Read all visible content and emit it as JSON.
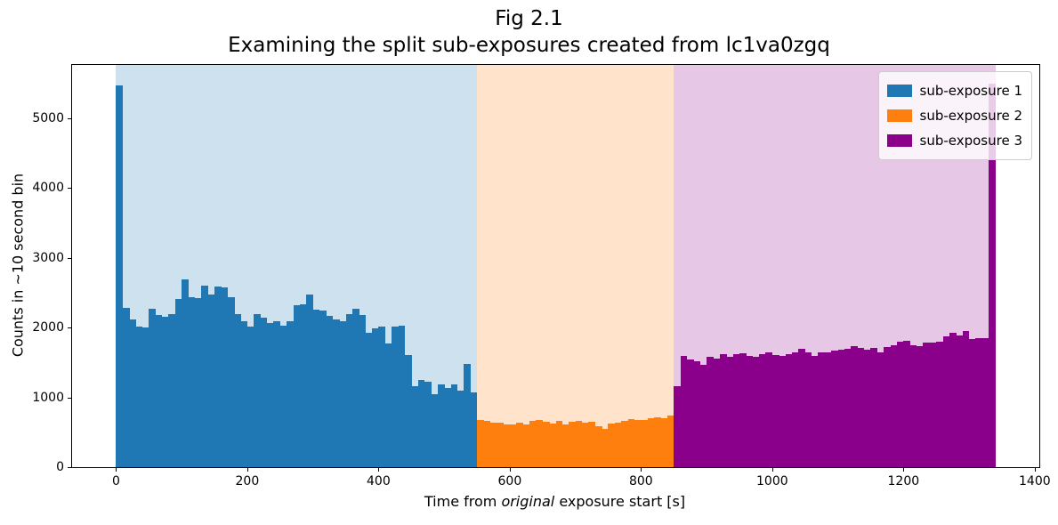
{
  "title": {
    "line1": "Fig 2.1",
    "line2": "Examining the split sub-exposures created from lc1va0zgq"
  },
  "axes": {
    "xlabel_prefix": "Time from ",
    "xlabel_italic": "original",
    "xlabel_suffix": " exposure start [s]",
    "ylabel": "Counts in ~10 second bin",
    "x_ticks": [
      0,
      200,
      400,
      600,
      800,
      1000,
      1200,
      1400
    ],
    "y_ticks": [
      0,
      1000,
      2000,
      3000,
      4000,
      5000
    ]
  },
  "legend": {
    "items": [
      {
        "label": "sub-exposure 1",
        "color": "#1f77b4"
      },
      {
        "label": "sub-exposure 2",
        "color": "#ff7f0e"
      },
      {
        "label": "sub-exposure 3",
        "color": "#8b008b"
      }
    ]
  },
  "chart_data": {
    "type": "bar",
    "subtype": "histogram",
    "title": "Fig 2.1 — Examining the split sub-exposures created from lc1va0zgq",
    "xlabel": "Time from original exposure start [s]",
    "ylabel": "Counts in ~10 second bin",
    "xlim": [
      -67,
      1407
    ],
    "ylim": [
      0,
      5765
    ],
    "bin_width_seconds": 10,
    "grid": false,
    "legend_position": "upper right",
    "shade_alpha": 0.22,
    "series": [
      {
        "name": "sub-exposure 1",
        "color": "#1f77b4",
        "span": [
          0,
          550
        ],
        "t_start": 0,
        "values": [
          5470,
          2280,
          2120,
          2010,
          2000,
          2270,
          2180,
          2160,
          2200,
          2410,
          2690,
          2440,
          2420,
          2600,
          2480,
          2590,
          2580,
          2440,
          2200,
          2090,
          2010,
          2190,
          2140,
          2070,
          2090,
          2030,
          2090,
          2320,
          2330,
          2475,
          2260,
          2240,
          2170,
          2120,
          2090,
          2200,
          2265,
          2180,
          1925,
          1990,
          2020,
          1775,
          2010,
          2030,
          1610,
          1160,
          1245,
          1225,
          1050,
          1190,
          1140,
          1180,
          1100,
          1480,
          1070
        ]
      },
      {
        "name": "sub-exposure 2",
        "color": "#ff7f0e",
        "span": [
          550,
          850
        ],
        "t_start": 550,
        "values": [
          680,
          660,
          635,
          635,
          615,
          610,
          635,
          615,
          665,
          680,
          645,
          630,
          660,
          615,
          650,
          660,
          640,
          645,
          590,
          555,
          625,
          640,
          665,
          690,
          670,
          680,
          700,
          720,
          700,
          735
        ]
      },
      {
        "name": "sub-exposure 3",
        "color": "#8b008b",
        "span": [
          850,
          1340
        ],
        "t_start": 850,
        "values": [
          1160,
          1600,
          1545,
          1520,
          1470,
          1585,
          1560,
          1615,
          1580,
          1620,
          1630,
          1600,
          1580,
          1625,
          1640,
          1610,
          1600,
          1615,
          1640,
          1700,
          1650,
          1600,
          1640,
          1650,
          1675,
          1690,
          1700,
          1730,
          1710,
          1680,
          1715,
          1645,
          1720,
          1745,
          1800,
          1810,
          1745,
          1730,
          1790,
          1790,
          1800,
          1870,
          1925,
          1890,
          1955,
          1840,
          1855,
          1845,
          5500
        ]
      }
    ]
  }
}
